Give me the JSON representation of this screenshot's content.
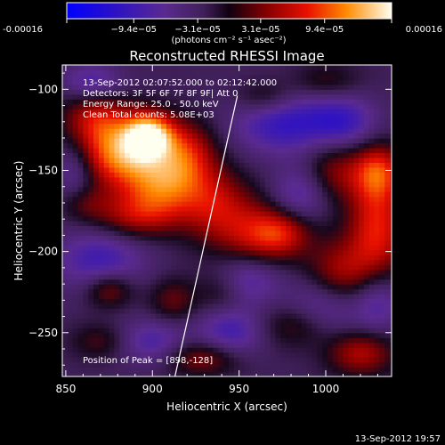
{
  "chart_data": {
    "type": "heatmap",
    "title": "Reconstructed RHESSI Image",
    "xlabel": "Heliocentric X (arcsec)",
    "ylabel": "Heliocentric Y (arcsec)",
    "xlim": [
      848,
      1038
    ],
    "ylim": [
      -277,
      -85
    ],
    "x_ticks": [
      850,
      900,
      950,
      1000
    ],
    "y_ticks": [
      -100,
      -150,
      -200,
      -250
    ],
    "colorbar": {
      "min": -0.00016,
      "max": 0.00016,
      "ticks": [
        "-0.00016",
        "−9.4e−05",
        "−3.1e−05",
        "3.1e−05",
        "9.4e−05",
        "0.00016"
      ],
      "tick_values": [
        -0.00016,
        -9.4e-05,
        -3.1e-05,
        3.1e-05,
        9.4e-05,
        0.00016
      ],
      "units": "(photons cm⁻² s⁻¹ asec⁻²)"
    },
    "annotations": [
      "13-Sep-2012 02:07:52.000 to 02:12:42.000",
      "Detectors: 3F 5F 6F 7F 8F 9F| Att 0",
      "Energy Range: 25.0 - 50.0 keV",
      "Clean     Total counts: 5.08E+03"
    ],
    "peak_label": "Position of Peak = [898,-128]",
    "peak": [
      898,
      -128
    ],
    "limb_line": [
      [
        913,
        -277
      ],
      [
        949,
        -104
      ]
    ],
    "blobs": [
      {
        "x": 898,
        "y": -128,
        "value": 0.00016,
        "sx": 10,
        "sy": 10
      },
      {
        "x": 880,
        "y": -140,
        "value": 0.00012,
        "sx": 16,
        "sy": 14
      },
      {
        "x": 905,
        "y": -158,
        "value": 0.00011,
        "sx": 16,
        "sy": 14
      },
      {
        "x": 868,
        "y": -118,
        "value": 8e-05,
        "sx": 14,
        "sy": 12
      },
      {
        "x": 920,
        "y": -138,
        "value": 8e-05,
        "sx": 12,
        "sy": 14
      },
      {
        "x": 890,
        "y": -178,
        "value": 7e-05,
        "sx": 18,
        "sy": 10
      },
      {
        "x": 935,
        "y": -170,
        "value": 7e-05,
        "sx": 14,
        "sy": 16
      },
      {
        "x": 860,
        "y": -170,
        "value": 4e-05,
        "sx": 10,
        "sy": 8
      },
      {
        "x": 958,
        "y": -192,
        "value": 8e-05,
        "sx": 16,
        "sy": 18
      },
      {
        "x": 975,
        "y": -188,
        "value": 7e-05,
        "sx": 12,
        "sy": 10
      },
      {
        "x": 1030,
        "y": -185,
        "value": 0.0001,
        "sx": 12,
        "sy": 24
      },
      {
        "x": 1030,
        "y": -150,
        "value": 9e-05,
        "sx": 10,
        "sy": 12
      },
      {
        "x": 1005,
        "y": -150,
        "value": 6e-05,
        "sx": 12,
        "sy": 14
      },
      {
        "x": 1008,
        "y": -215,
        "value": 8e-05,
        "sx": 14,
        "sy": 16
      },
      {
        "x": 985,
        "y": -245,
        "value": 6e-05,
        "sx": 16,
        "sy": 10
      },
      {
        "x": 1020,
        "y": -262,
        "value": 8e-05,
        "sx": 14,
        "sy": 10
      },
      {
        "x": 965,
        "y": -105,
        "value": 5e-05,
        "sx": 12,
        "sy": 8
      },
      {
        "x": 1000,
        "y": -95,
        "value": 4e-05,
        "sx": 14,
        "sy": 8
      },
      {
        "x": 875,
        "y": -223,
        "value": 7e-05,
        "sx": 10,
        "sy": 8
      },
      {
        "x": 912,
        "y": -230,
        "value": 5e-05,
        "sx": 10,
        "sy": 10
      },
      {
        "x": 930,
        "y": -265,
        "value": 7e-05,
        "sx": 16,
        "sy": 8
      },
      {
        "x": 870,
        "y": -255,
        "value": 4e-05,
        "sx": 12,
        "sy": 8
      },
      {
        "x": 940,
        "y": -225,
        "value": 4e-05,
        "sx": 10,
        "sy": 10
      },
      {
        "x": 975,
        "y": -120,
        "value": -8e-05,
        "sx": 20,
        "sy": 14
      },
      {
        "x": 1010,
        "y": -120,
        "value": -7e-05,
        "sx": 14,
        "sy": 12
      },
      {
        "x": 870,
        "y": -205,
        "value": -7e-05,
        "sx": 18,
        "sy": 14
      },
      {
        "x": 955,
        "y": -215,
        "value": -8e-05,
        "sx": 14,
        "sy": 12
      },
      {
        "x": 1000,
        "y": -235,
        "value": -8e-05,
        "sx": 16,
        "sy": 14
      },
      {
        "x": 865,
        "y": -95,
        "value": -6e-05,
        "sx": 12,
        "sy": 8
      },
      {
        "x": 945,
        "y": -250,
        "value": -7e-05,
        "sx": 14,
        "sy": 12
      },
      {
        "x": 900,
        "y": -255,
        "value": -6e-05,
        "sx": 14,
        "sy": 10
      },
      {
        "x": 985,
        "y": -165,
        "value": -6e-05,
        "sx": 12,
        "sy": 12
      },
      {
        "x": 1030,
        "y": -230,
        "value": -6e-05,
        "sx": 10,
        "sy": 14
      },
      {
        "x": 855,
        "y": -150,
        "value": -5e-05,
        "sx": 8,
        "sy": 14
      }
    ]
  },
  "footer": {
    "date": "13-Sep-2012 19:57"
  }
}
